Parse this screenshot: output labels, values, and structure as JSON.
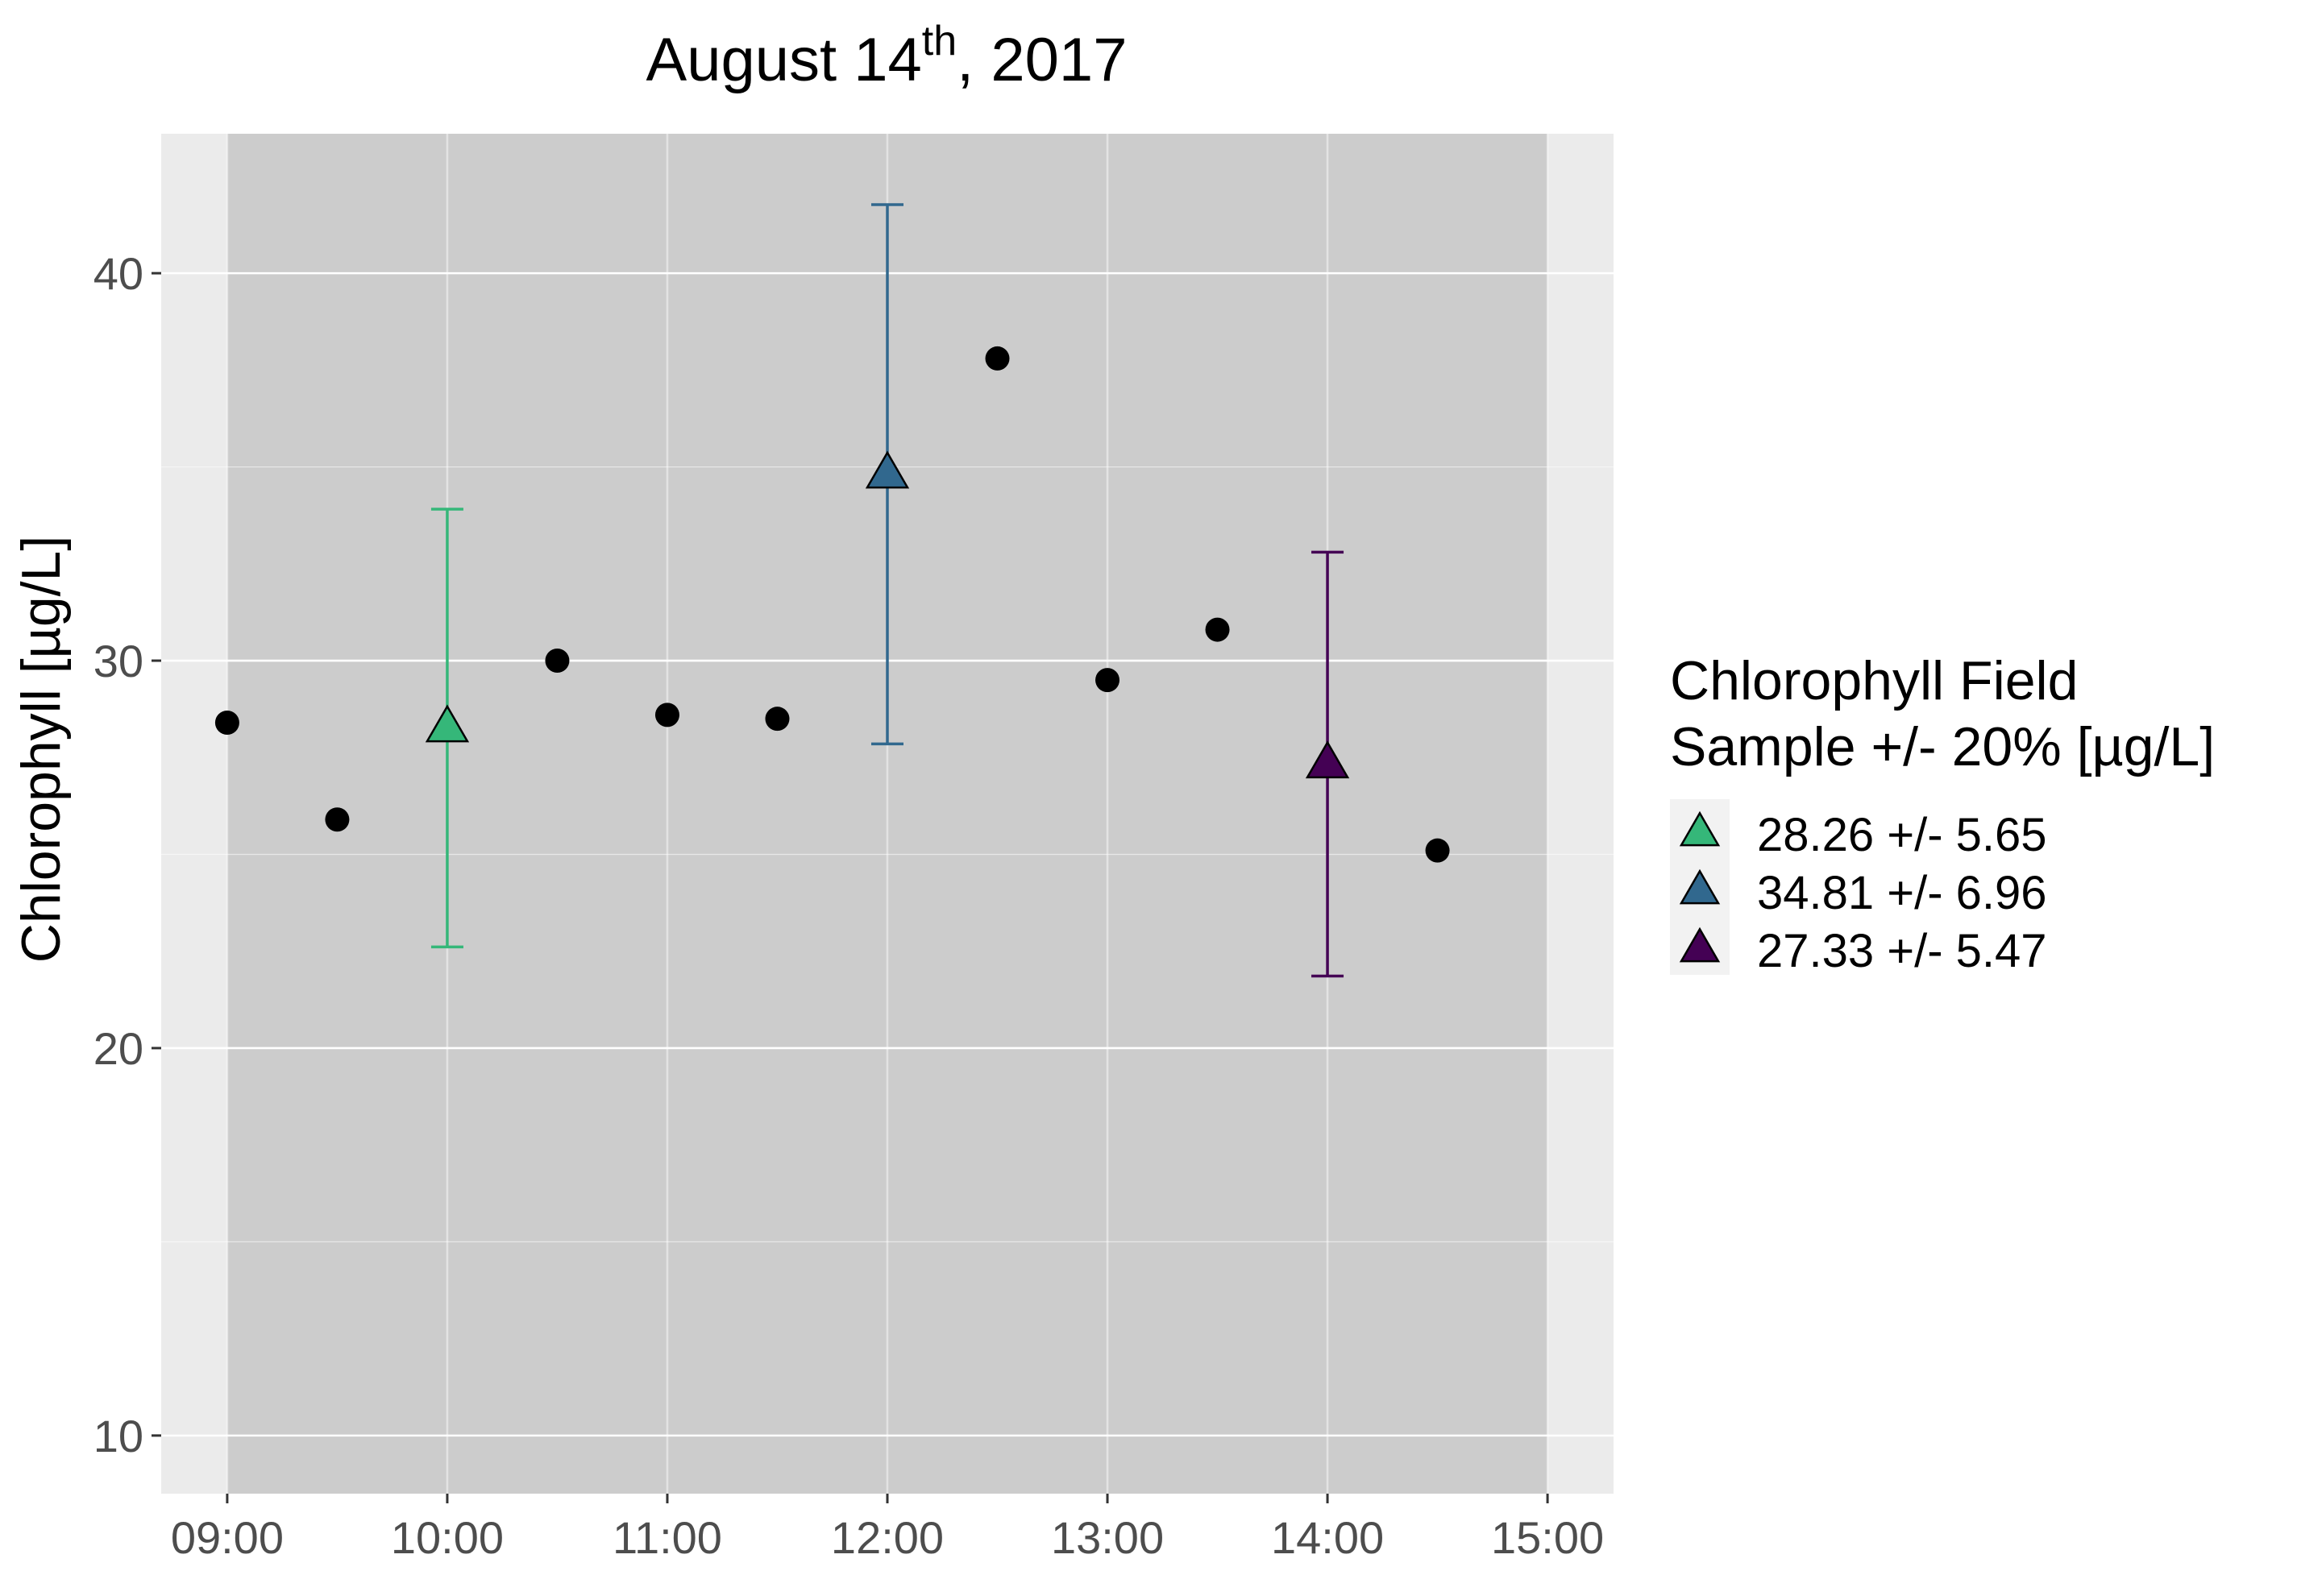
{
  "chart_data": {
    "type": "scatter",
    "title": "August 14",
    "title_superscript": "th",
    "title_suffix": ", 2017",
    "xlabel": "",
    "ylabel": "Chlorophyll [µg/L]",
    "x_ticks": [
      "09:00",
      "10:00",
      "11:00",
      "12:00",
      "13:00",
      "14:00",
      "15:00"
    ],
    "y_ticks": [
      10,
      20,
      30,
      40
    ],
    "xlim": [
      "08:42",
      "15:18"
    ],
    "ylim": [
      8.5,
      43.6
    ],
    "shaded_band": [
      "09:00",
      "15:00"
    ],
    "grid": true,
    "legend_position": "right",
    "colors": {
      "panel": "#ebebeb",
      "band": "#cccccc",
      "grid": "#ffffff",
      "points": "#000000"
    },
    "points": [
      {
        "x": "09:00",
        "y": 28.4
      },
      {
        "x": "09:30",
        "y": 25.9
      },
      {
        "x": "10:30",
        "y": 30.0
      },
      {
        "x": "11:00",
        "y": 28.6
      },
      {
        "x": "11:30",
        "y": 28.5
      },
      {
        "x": "12:30",
        "y": 37.8
      },
      {
        "x": "13:00",
        "y": 29.5
      },
      {
        "x": "13:30",
        "y": 30.8
      },
      {
        "x": "14:30",
        "y": 25.1
      }
    ],
    "legend_title_lines": [
      "Chlorophyll Field",
      "Sample +/- 20% [µg/L]"
    ],
    "field_samples": [
      {
        "name": "28.26 +/- 5.65",
        "x": "10:00",
        "y": 28.26,
        "err": 5.65,
        "color": "#35b779"
      },
      {
        "name": "34.81 +/- 6.96",
        "x": "12:00",
        "y": 34.81,
        "err": 6.96,
        "color": "#31688e"
      },
      {
        "name": "27.33 +/- 5.47",
        "x": "14:00",
        "y": 27.33,
        "err": 5.47,
        "color": "#440154"
      }
    ]
  }
}
